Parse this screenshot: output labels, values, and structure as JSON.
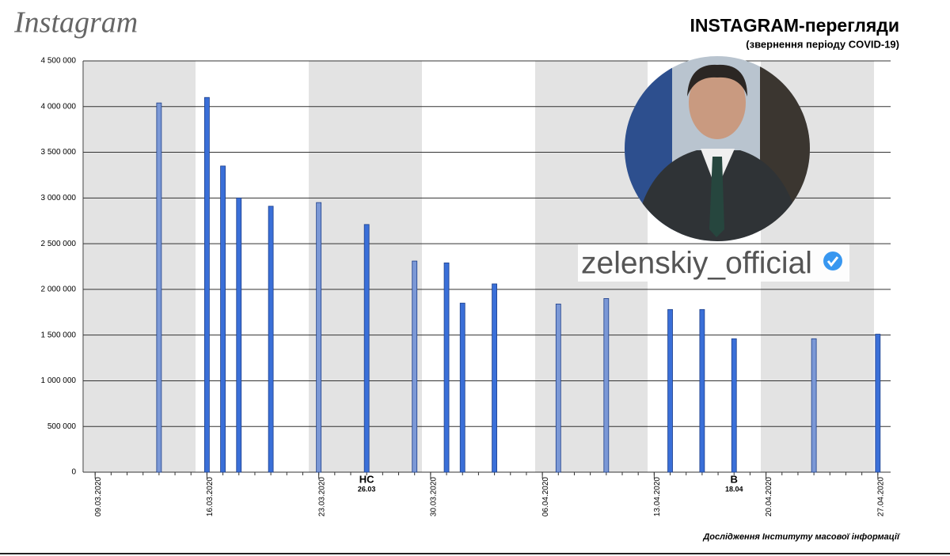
{
  "logo": "Instagram",
  "account": "zelenskiy_official",
  "chart_data": {
    "type": "bar",
    "title": "INSTAGRAM-перегляди",
    "subtitle": "(звернення періоду COVID-19)",
    "source": "Дослідження Інституту масової інформації",
    "x": [
      "13.03.2020",
      "16.03.2020",
      "17.03.2020",
      "18.03.2020",
      "20.03.2020",
      "23.03.2020",
      "26.03.2020",
      "29.03.2020",
      "31.03.2020",
      "01.04.2020",
      "03.04.2020",
      "07.04.2020",
      "10.04.2020",
      "14.04.2020",
      "16.04.2020",
      "18.04.2020",
      "23.04.2020",
      "27.04.2020"
    ],
    "values": [
      4040000,
      4100000,
      3350000,
      3000000,
      2910000,
      2950000,
      2710000,
      2310000,
      2290000,
      1850000,
      2060000,
      1840000,
      1900000,
      1780000,
      1780000,
      1460000,
      1460000,
      1510000
    ],
    "colors": [
      "#7b98d6",
      "#3a6fd8",
      "#3a6fd8",
      "#3a6fd8",
      "#3a6fd8",
      "#7b98d6",
      "#3a6fd8",
      "#7b98d6",
      "#3a6fd8",
      "#3a6fd8",
      "#3a6fd8",
      "#7b98d6",
      "#7b98d6",
      "#3a6fd8",
      "#3a6fd8",
      "#3a6fd8",
      "#7b98d6",
      "#3a6fd8"
    ],
    "xlim": [
      "08.03.2020",
      "28.04.2020"
    ],
    "xticks": [
      "09.03.2020",
      "16.03.2020",
      "23.03.2020",
      "30.03.2020",
      "06.04.2020",
      "13.04.2020",
      "20.04.2020",
      "27.04.2020"
    ],
    "ylim": [
      0,
      4500000
    ],
    "yticks": [
      0,
      {
        "value": 500000,
        "label": "500 000"
      },
      {
        "value": 1000000,
        "label": "1 000 000"
      },
      {
        "value": 1500000,
        "label": "1 500 000"
      },
      {
        "value": 2000000,
        "label": "2 000 000"
      },
      {
        "value": 2500000,
        "label": "2 500 000"
      },
      {
        "value": 3000000,
        "label": "3 000 000"
      },
      {
        "value": 3500000,
        "label": "3 500 000"
      },
      {
        "value": 4000000,
        "label": "4 000 000"
      },
      {
        "value": 4500000,
        "label": "4 500 000"
      }
    ],
    "grid": true,
    "annotations": [
      {
        "label": "НС",
        "date": "26.03"
      },
      {
        "label": "В",
        "date": "18.04"
      }
    ]
  }
}
